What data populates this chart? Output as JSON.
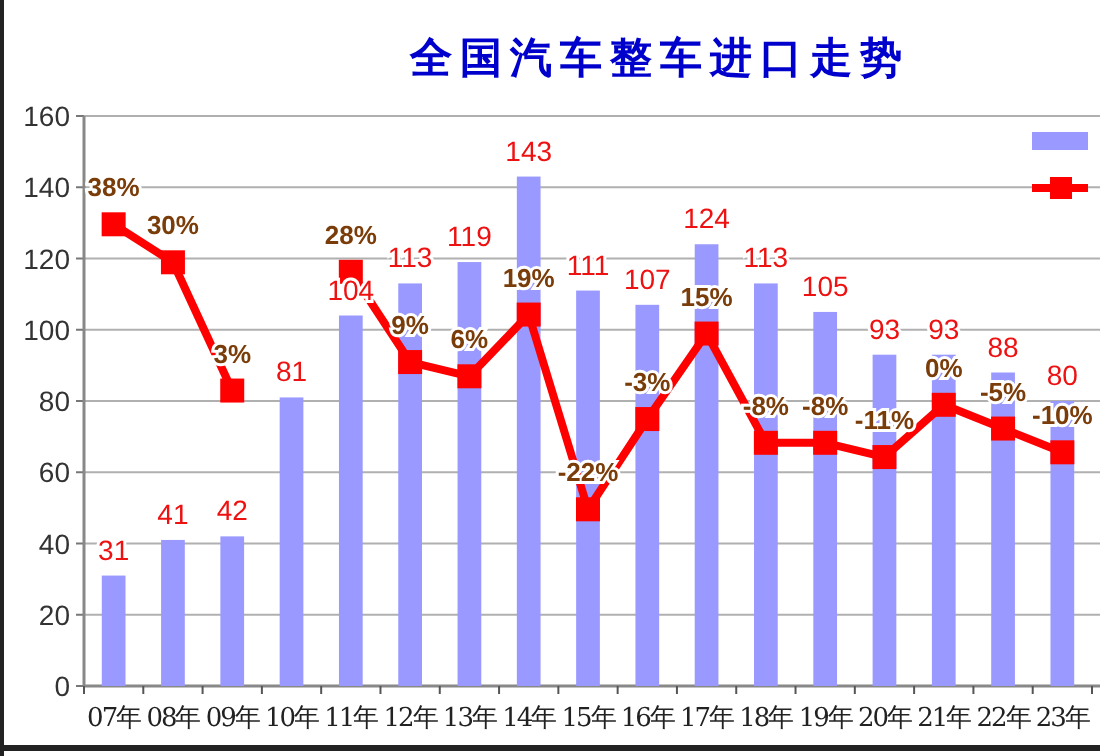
{
  "chart_data": {
    "type": "bar",
    "title": "全国汽车整车进口走势",
    "categories": [
      "07年",
      "08年",
      "09年",
      "10年",
      "11年",
      "12年",
      "13年",
      "14年",
      "15年",
      "16年",
      "17年",
      "18年",
      "19年",
      "20年",
      "21年",
      "22年",
      "23年"
    ],
    "series": [
      {
        "color": "#9999ff",
        "values": [
          31,
          41,
          42,
          81,
          104,
          113,
          119,
          143,
          111,
          107,
          124,
          113,
          105,
          93,
          93,
          88,
          80
        ]
      },
      {
        "type": "line",
        "axis": "y2",
        "color": "#ff0000",
        "marker": "square",
        "values": [
          38,
          30,
          3,
          null,
          28,
          9,
          6,
          19,
          -22,
          -3,
          15,
          -8,
          -8,
          -11,
          0,
          -5,
          -10
        ],
        "value_labels": [
          "38%",
          "30%",
          "3%",
          null,
          "28%",
          "9%",
          "6%",
          "19%",
          "-22%",
          "-3%",
          "15%",
          "-8%",
          "-8%",
          "-11%",
          "0%",
          "-5%",
          "-10%"
        ]
      }
    ],
    "data_labels": true,
    "ylim": [
      0,
      160
    ],
    "yticks": [
      0,
      20,
      40,
      60,
      80,
      100,
      120,
      140,
      160
    ],
    "grid": "y"
  }
}
